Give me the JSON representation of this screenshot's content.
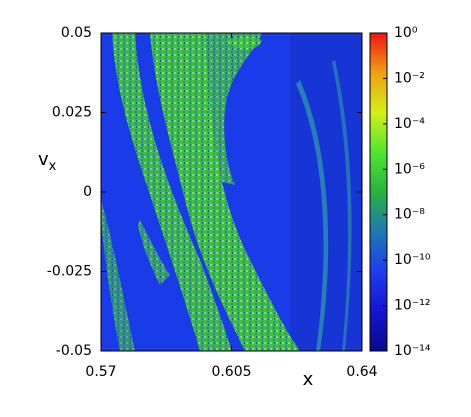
{
  "chart_data": {
    "type": "heatmap",
    "xlabel": "x",
    "ylabel": "v",
    "ylabel_sub": "x",
    "xlim": [
      0.57,
      0.64
    ],
    "xticks": [
      0.57,
      0.605,
      0.64
    ],
    "ylim": [
      -0.05,
      0.05
    ],
    "yticks": [
      0.05,
      0.025,
      0,
      -0.025,
      -0.05
    ],
    "log_scale_colorbar": true,
    "clim": [
      1e-14,
      1
    ],
    "cticks": [
      {
        "value": 1,
        "label": "10⁰"
      },
      {
        "value": 0.01,
        "label": "10⁻²"
      },
      {
        "value": 0.0001,
        "label": "10⁻⁴"
      },
      {
        "value": 1e-06,
        "label": "10⁻⁶"
      },
      {
        "value": 1e-08,
        "label": "10⁻⁸"
      },
      {
        "value": 1e-10,
        "label": "10⁻¹⁰"
      },
      {
        "value": 1e-12,
        "label": "10⁻¹²"
      },
      {
        "value": 1e-14,
        "label": "10⁻¹⁴"
      }
    ],
    "colormap": [
      "#0a0a8c",
      "#1414d2",
      "#1e3cf0",
      "#1e78b4",
      "#28b43c",
      "#50e632",
      "#d2f014",
      "#f0a014",
      "#f01414"
    ]
  }
}
